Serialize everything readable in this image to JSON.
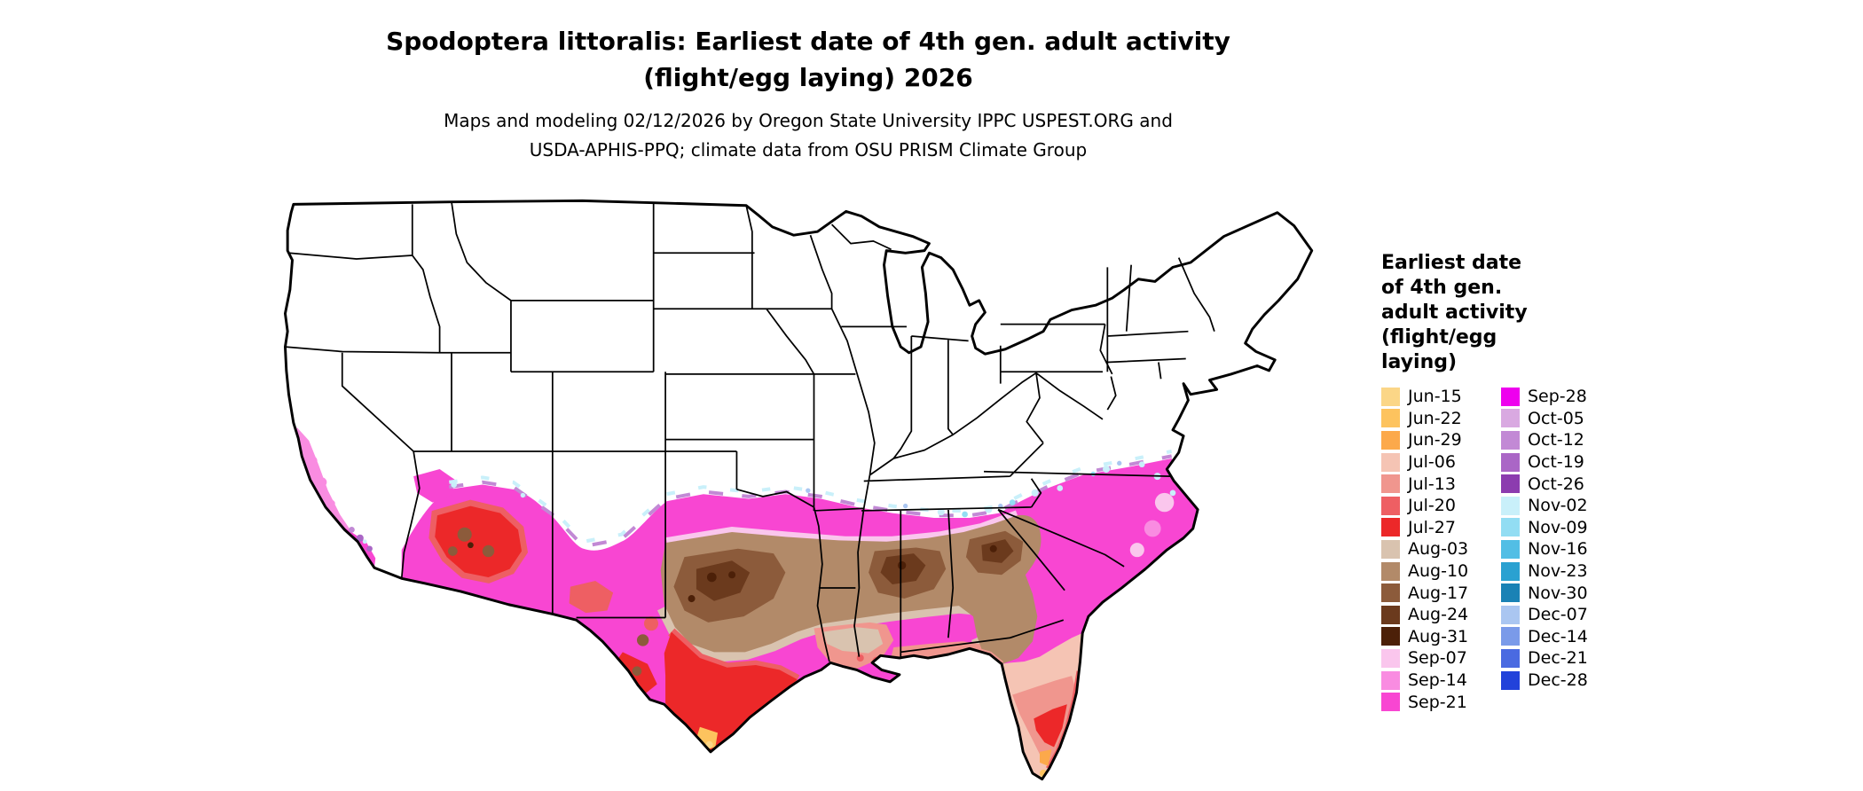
{
  "title": {
    "line1": "Spodoptera littoralis: Earliest date of 4th gen. adult activity",
    "line2": "(flight/egg laying) 2026"
  },
  "subtitle": {
    "line1": "Maps and modeling 02/12/2026 by Oregon State University IPPC USPEST.ORG and",
    "line2": "USDA-APHIS-PPQ; climate data from OSU PRISM Climate Group"
  },
  "legend": {
    "title": "Earliest date of 4th gen. adult activity (flight/egg laying)",
    "title_lines": [
      "Earliest date",
      "of 4th gen.",
      "adult activity",
      "(flight/egg",
      "laying)"
    ],
    "col1": [
      {
        "label": "Jun-15",
        "color": "#fbd687"
      },
      {
        "label": "Jun-22",
        "color": "#fdc35e"
      },
      {
        "label": "Jun-29",
        "color": "#fca94b"
      },
      {
        "label": "Jul-06",
        "color": "#f5c4b4"
      },
      {
        "label": "Jul-13",
        "color": "#f0968e"
      },
      {
        "label": "Jul-20",
        "color": "#ee5f63"
      },
      {
        "label": "Jul-27",
        "color": "#ec2829"
      },
      {
        "label": "Aug-03",
        "color": "#d9c3af"
      },
      {
        "label": "Aug-10",
        "color": "#b28a69"
      },
      {
        "label": "Aug-17",
        "color": "#8c5b3b"
      },
      {
        "label": "Aug-24",
        "color": "#6b3a1d"
      },
      {
        "label": "Aug-31",
        "color": "#4c2008"
      },
      {
        "label": "Sep-07",
        "color": "#fac6ed"
      },
      {
        "label": "Sep-14",
        "color": "#f98ce1"
      },
      {
        "label": "Sep-21",
        "color": "#f846d2"
      }
    ],
    "col2": [
      {
        "label": "Sep-28",
        "color": "#ee00ee"
      },
      {
        "label": "Oct-05",
        "color": "#d9a9e1"
      },
      {
        "label": "Oct-12",
        "color": "#c289d5"
      },
      {
        "label": "Oct-19",
        "color": "#aa66c6"
      },
      {
        "label": "Oct-26",
        "color": "#8c3caf"
      },
      {
        "label": "Nov-02",
        "color": "#c9f0fa"
      },
      {
        "label": "Nov-09",
        "color": "#92ddf3"
      },
      {
        "label": "Nov-16",
        "color": "#52bee5"
      },
      {
        "label": "Nov-23",
        "color": "#2aa1d1"
      },
      {
        "label": "Nov-30",
        "color": "#1a82b5"
      },
      {
        "label": "Dec-07",
        "color": "#aac6f1"
      },
      {
        "label": "Dec-14",
        "color": "#7a9ae9"
      },
      {
        "label": "Dec-21",
        "color": "#4a6ae1"
      },
      {
        "label": "Dec-28",
        "color": "#2242da"
      }
    ]
  },
  "map": {
    "region": "Contiguous United States",
    "outline_color": "#000000"
  }
}
